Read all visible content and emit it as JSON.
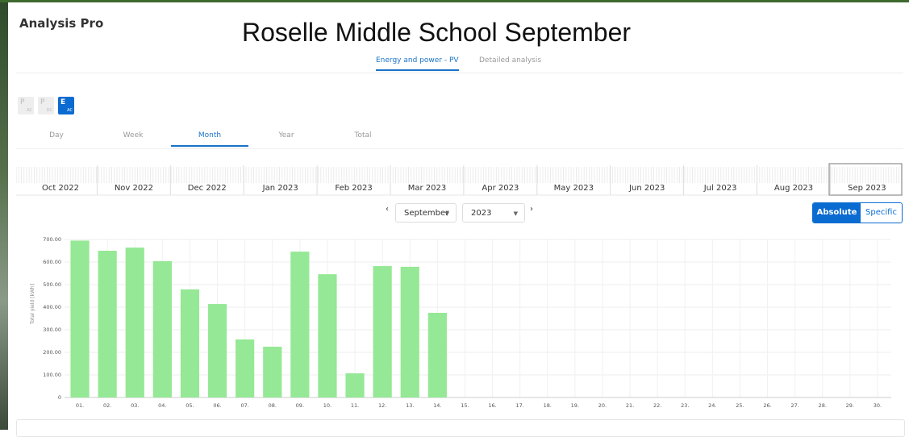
{
  "header": {
    "app": "Analysis Pro",
    "title": "Roselle Middle School September"
  },
  "tabs": [
    "Energy and power - PV",
    "Detailed analysis"
  ],
  "buttons": [
    {
      "main": "P",
      "sub": "AC"
    },
    {
      "main": "P",
      "sub": "DC"
    },
    {
      "main": "E",
      "sub": "AC"
    }
  ],
  "periods": [
    "Day",
    "Week",
    "Month",
    "Year",
    "Total"
  ],
  "timeline": [
    "Oct 2022",
    "Nov 2022",
    "Dec 2022",
    "Jan 2023",
    "Feb 2023",
    "Mar 2023",
    "Apr 2023",
    "May 2023",
    "Jun 2023",
    "Jul 2023",
    "Aug 2023",
    "Sep 2023"
  ],
  "selector": {
    "month": "September",
    "year": "2023"
  },
  "modes": [
    "Absolute",
    "Specific"
  ],
  "chart_data": {
    "type": "bar",
    "y_label": "Total yield [kWh]",
    "categories": [
      "01.",
      "02.",
      "03.",
      "04.",
      "05.",
      "06.",
      "07.",
      "08.",
      "09.",
      "10.",
      "11.",
      "12.",
      "13.",
      "14.",
      "15.",
      "16.",
      "17.",
      "18.",
      "19.",
      "20.",
      "21.",
      "22.",
      "23.",
      "24.",
      "25.",
      "26.",
      "27.",
      "28.",
      "29.",
      "30."
    ],
    "values": [
      695,
      650,
      664,
      604,
      479,
      414,
      257,
      225,
      646,
      546,
      107,
      582,
      579,
      375,
      null,
      null,
      null,
      null,
      null,
      null,
      null,
      null,
      null,
      null,
      null,
      null,
      null,
      null,
      null,
      null
    ],
    "color": "#95e895",
    "ylim": [
      0,
      700
    ],
    "yticks": [
      0,
      {
        "value": 100,
        "label": "100.00"
      },
      {
        "value": 200,
        "label": "200.00"
      },
      {
        "value": 300,
        "label": "300.00"
      },
      {
        "value": 400,
        "label": "400.00"
      },
      {
        "value": 500,
        "label": "500.00"
      },
      {
        "value": 600,
        "label": "600.00"
      },
      {
        "value": 700,
        "label": "700.00"
      }
    ],
    "grid": true
  }
}
